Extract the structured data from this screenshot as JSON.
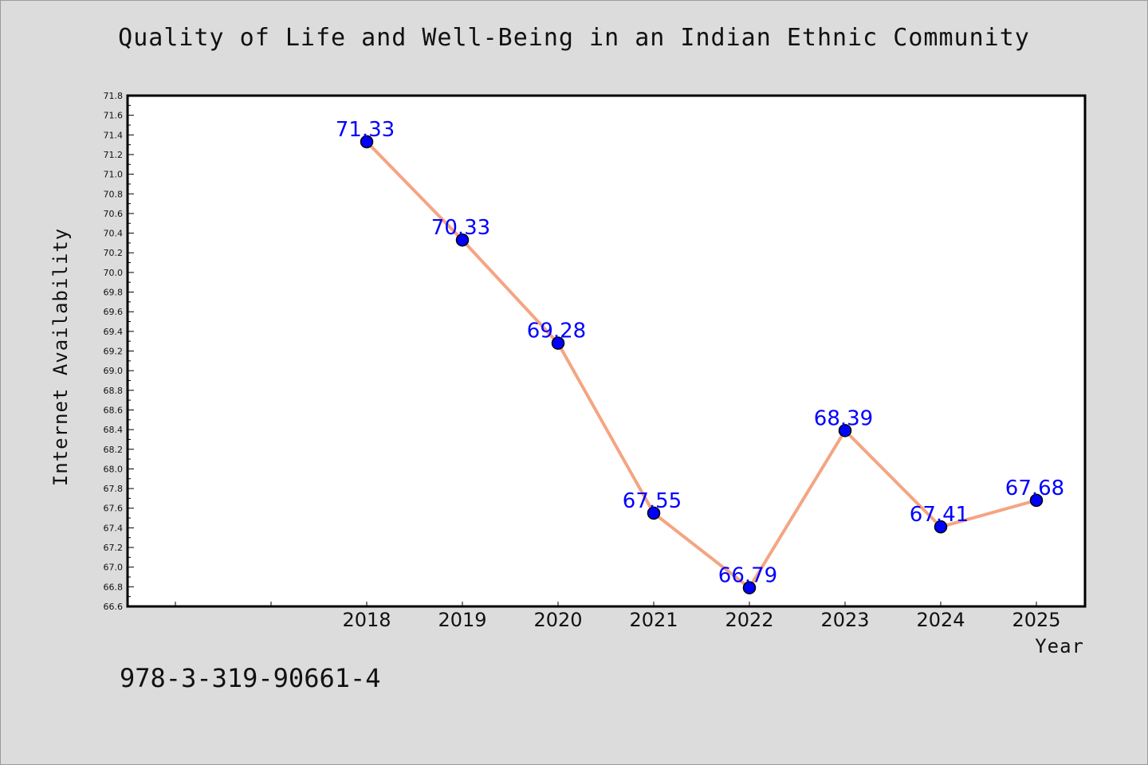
{
  "chart_data": {
    "type": "line",
    "title": "Quality of Life and Well-Being in an Indian Ethnic Community",
    "xlabel": "Year",
    "ylabel": "Internet Availability",
    "categories": [
      "2018",
      "2019",
      "2020",
      "2021",
      "2022",
      "2023",
      "2024",
      "2025"
    ],
    "series": [
      {
        "values": [
          71.33,
          70.33,
          69.28,
          67.55,
          66.79,
          68.39,
          67.41,
          67.68
        ],
        "labels": [
          "71.33",
          "70.33",
          "69.28",
          "67.55",
          "66.79",
          "68.39",
          "67.41",
          "67.68"
        ]
      }
    ],
    "y_ticks": [
      "66.6",
      "66.8",
      "67.0",
      "67.2",
      "67.4",
      "67.6",
      "67.8",
      "68.0",
      "68.2",
      "68.4",
      "68.6",
      "68.8",
      "69.0",
      "69.2",
      "69.4",
      "69.6",
      "69.8",
      "70.0",
      "70.2",
      "70.4",
      "70.6",
      "70.8",
      "71.0",
      "71.2",
      "71.4",
      "71.6",
      "71.8"
    ],
    "ylim": [
      66.6,
      71.8
    ],
    "grid": false,
    "colors": {
      "line": "#f4a582",
      "marker": "#0000ff",
      "label": "#0000ff",
      "plot_bg": "#ffffff",
      "page_bg": "#dcdcdc"
    }
  },
  "footer": {
    "code": "978-3-319-90661-4"
  }
}
